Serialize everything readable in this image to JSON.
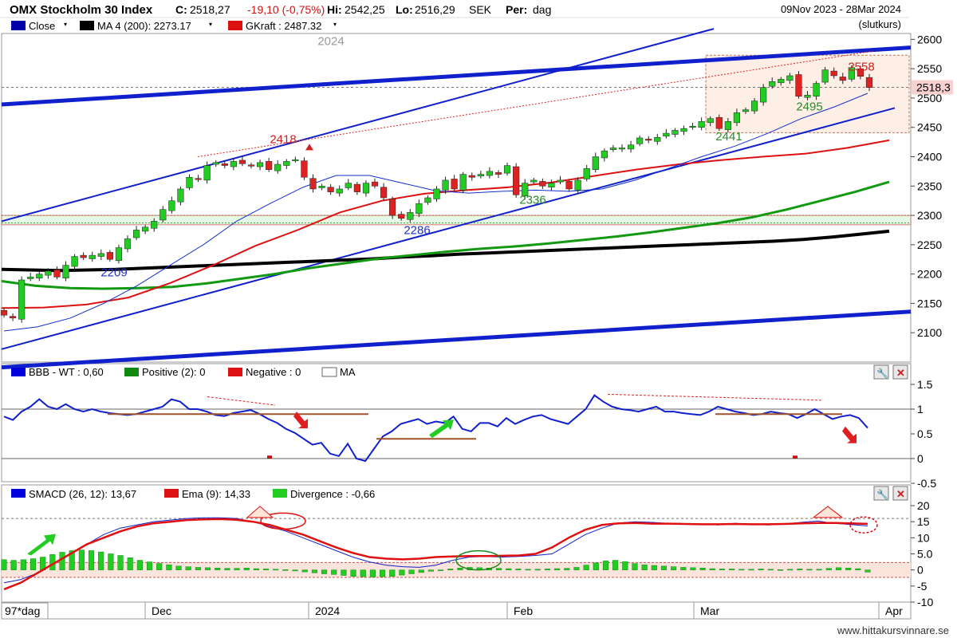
{
  "header": {
    "title": "OMX Stockholm 30 Index",
    "close_label": "C:",
    "close_value": "2518,27",
    "change": "-19,10 (-0,75%)",
    "hi_label": "Hi:",
    "hi_value": "2542,25",
    "lo_label": "Lo:",
    "lo_value": "2516,29",
    "currency": "SEK",
    "period_label": "Per:",
    "period_value": "dag",
    "date_range": "09Nov 2023 - 28Mar 2024",
    "close_type": "(slutkurs)"
  },
  "legend": {
    "close": "Close",
    "ma": "MA 4 (200): 2273.17",
    "gkraft": "GKraft : 2487.32",
    "bbb": "BBB - WT : 0,60",
    "positive": "Positive (2): 0",
    "negative": "Negative : 0",
    "ma_box": "MA",
    "smacd": "SMACD (26, 12): 13,67",
    "ema": "Ema (9): 14,33",
    "divergence": "Divergence : -0,66"
  },
  "annotations": {
    "year_label": "2024",
    "peak_2418": "2418",
    "peak_2558": "2558",
    "low_2209": "2209",
    "low_2286": "2286",
    "low_2336": "2336",
    "low_2441": "2441",
    "low_2495": "2495",
    "last_price_tag": "2518,3"
  },
  "colors": {
    "up": "#22cc22",
    "down": "#dd2222",
    "close_line": "#0000aa",
    "ma200": "#000000",
    "gkraft": "#dd1111",
    "green_ma": "#119911",
    "trend": "#1020cc",
    "orange_line": "#a0522d"
  },
  "footer": {
    "watermark": "www.hittakursvinnare.se",
    "period_box": "97*dag"
  },
  "chart_data": {
    "type": "candlestick",
    "x_labels": [
      "Dec",
      "2024",
      "Feb",
      "Mar",
      "Apr"
    ],
    "y_ticks": [
      2100,
      2150,
      2200,
      2250,
      2300,
      2350,
      2400,
      2450,
      2500,
      2550,
      2600
    ],
    "ylim": [
      2050,
      2610
    ],
    "closes": [
      2130,
      2125,
      2190,
      2195,
      2200,
      2205,
      2195,
      2215,
      2230,
      2228,
      2232,
      2235,
      2225,
      2245,
      2260,
      2275,
      2280,
      2290,
      2310,
      2325,
      2345,
      2365,
      2362,
      2385,
      2390,
      2385,
      2392,
      2388,
      2385,
      2390,
      2378,
      2387,
      2392,
      2395,
      2365,
      2345,
      2350,
      2340,
      2345,
      2355,
      2340,
      2355,
      2350,
      2330,
      2300,
      2295,
      2305,
      2320,
      2330,
      2345,
      2360,
      2345,
      2370,
      2365,
      2370,
      2375,
      2370,
      2385,
      2335,
      2355,
      2360,
      2350,
      2355,
      2360,
      2345,
      2360,
      2380,
      2400,
      2410,
      2415,
      2415,
      2420,
      2432,
      2428,
      2433,
      2440,
      2445,
      2448,
      2452,
      2460,
      2465,
      2448,
      2460,
      2475,
      2480,
      2495,
      2518,
      2528,
      2532,
      2538,
      2503,
      2505,
      2525,
      2548,
      2538,
      2530,
      2552,
      2537,
      2518
    ],
    "bbb_ylim": [
      -0.5,
      1.5
    ],
    "bbb_ticks": [
      1.5,
      1,
      0.5,
      0,
      -0.5
    ],
    "smacd_ylim": [
      -10,
      20
    ],
    "smacd_ticks": [
      20,
      15,
      10,
      5,
      0,
      -5,
      -10
    ],
    "smacd_last": 13.67,
    "ema_last": 14.33,
    "divergence_last": -0.66
  }
}
